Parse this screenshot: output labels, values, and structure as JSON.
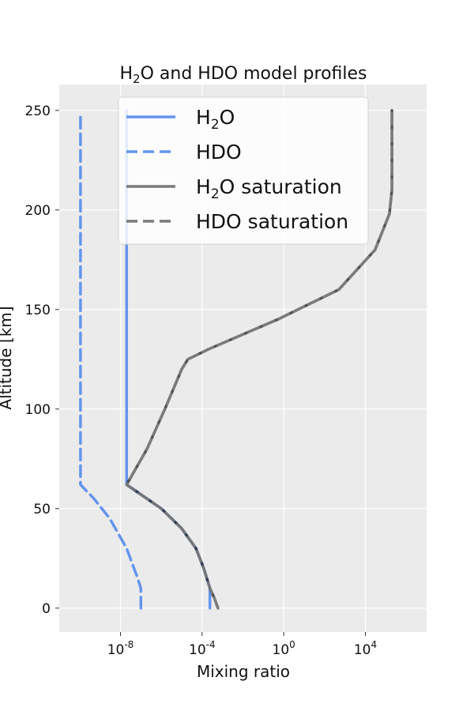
{
  "chart_data": {
    "type": "line",
    "title_main": "H",
    "title_sub": "2",
    "title_rest": "O and HDO model profiles",
    "xlabel": "Mixing ratio",
    "ylabel": "Altitude [km]",
    "x_scale": "log",
    "xlim": [
      1e-11,
      10000000.0
    ],
    "ylim": [
      -12,
      263
    ],
    "grid": true,
    "x_ticks": [
      {
        "base": "10",
        "exp": "-8",
        "value": 1e-08
      },
      {
        "base": "10",
        "exp": "-4",
        "value": 0.0001
      },
      {
        "base": "10",
        "exp": "0",
        "value": 1
      },
      {
        "base": "10",
        "exp": "4",
        "value": 10000.0
      }
    ],
    "y_ticks": [
      0,
      50,
      100,
      150,
      200,
      250
    ],
    "legend_position": "top-right",
    "legend": [
      {
        "base": "H",
        "sub": "2",
        "rest": "O"
      },
      {
        "base": "HDO",
        "sub": "",
        "rest": ""
      },
      {
        "base": "H",
        "sub": "2",
        "rest": "O saturation"
      },
      {
        "base": "HDO saturation",
        "sub": "",
        "rest": ""
      }
    ],
    "series": [
      {
        "name": "H2O",
        "color": "#6495ed",
        "dash": "solid",
        "points": [
          [
            0.00024,
            0
          ],
          [
            0.00024,
            10
          ],
          [
            0.00012,
            20
          ],
          [
            5e-05,
            30
          ],
          [
            1e-05,
            40
          ],
          [
            1e-06,
            50
          ],
          [
            2e-08,
            62
          ],
          [
            2e-08,
            70
          ],
          [
            2e-08,
            100
          ],
          [
            2e-08,
            150
          ],
          [
            2e-08,
            200
          ],
          [
            2e-08,
            250
          ]
        ]
      },
      {
        "name": "HDO",
        "color": "#6495ed",
        "dash": "dashed",
        "points": [
          [
            1e-07,
            0
          ],
          [
            1e-07,
            10
          ],
          [
            7e-08,
            15
          ],
          [
            2e-08,
            30
          ],
          [
            3e-09,
            45
          ],
          [
            5e-10,
            55
          ],
          [
            1.1e-10,
            62
          ],
          [
            1.1e-10,
            70
          ],
          [
            1.1e-10,
            100
          ],
          [
            1.1e-10,
            150
          ],
          [
            1.1e-10,
            200
          ],
          [
            1.1e-10,
            248
          ]
        ]
      },
      {
        "name": "H2O saturation",
        "color": "#7a7a7a",
        "dash": "solid",
        "points": [
          [
            0.0006,
            0
          ],
          [
            0.0004,
            5
          ],
          [
            0.00024,
            10
          ],
          [
            0.00012,
            20
          ],
          [
            5e-05,
            30
          ],
          [
            1e-05,
            40
          ],
          [
            1e-06,
            50
          ],
          [
            2e-08,
            62
          ],
          [
            2e-07,
            80
          ],
          [
            1.5e-06,
            100
          ],
          [
            1e-05,
            120
          ],
          [
            2e-05,
            125
          ],
          [
            0.0002,
            130
          ],
          [
            0.5,
            145
          ],
          [
            500,
            160
          ],
          [
            30000,
            180
          ],
          [
            150000,
            198
          ],
          [
            200000,
            210
          ],
          [
            200000,
            250
          ]
        ]
      },
      {
        "name": "HDO saturation",
        "color": "#7a7a7a",
        "dash": "dashed",
        "points": [
          [
            0.0006,
            0
          ],
          [
            0.0004,
            5
          ],
          [
            0.00024,
            10
          ],
          [
            0.00012,
            20
          ],
          [
            5e-05,
            30
          ],
          [
            1e-05,
            40
          ],
          [
            1e-06,
            50
          ],
          [
            2e-08,
            62
          ],
          [
            2e-07,
            80
          ],
          [
            1.5e-06,
            100
          ],
          [
            1e-05,
            120
          ],
          [
            2e-05,
            125
          ],
          [
            0.0002,
            130
          ],
          [
            0.5,
            145
          ],
          [
            500,
            160
          ],
          [
            30000,
            180
          ],
          [
            150000,
            198
          ],
          [
            200000,
            210
          ],
          [
            200000,
            250
          ]
        ]
      }
    ]
  }
}
